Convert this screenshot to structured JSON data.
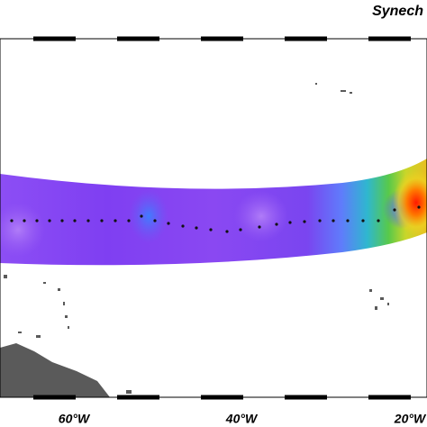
{
  "title": "Synech",
  "axis": {
    "labels": [
      "60°W",
      "40°W",
      "20°W"
    ]
  }
}
